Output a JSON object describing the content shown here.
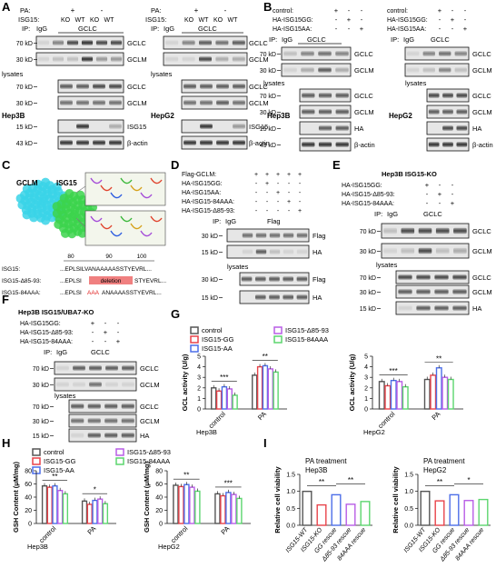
{
  "panels": {
    "A": "A",
    "B": "B",
    "C": "C",
    "D": "D",
    "E": "E",
    "F": "F",
    "G": "G",
    "H": "H",
    "I": "I"
  },
  "blot": {
    "pa": "PA:",
    "isg15": "ISG15:",
    "plus": "+",
    "minus": "-",
    "ko": "KO",
    "wt": "WT",
    "ip": "IP:",
    "igg": "IgG",
    "gclc": "GCLC",
    "gclm": "GCLM",
    "lysates": "lysates",
    "isg15_band": "ISG15",
    "bactin": "β-actin",
    "ha": "HA",
    "flag": "Flag",
    "control": "control:",
    "ha_gg": "HA-ISG15GG:",
    "ha_aa": "HA-ISG15AA:",
    "ha_d8593": "HA-ISG15-Δ85-93:",
    "ha_84aaa": "HA-ISG15-84AAA:",
    "flag_gclm": "Flag-GCLM:",
    "hep3b": "Hep3B",
    "hepg2": "HepG2",
    "hep3b_isg15ko": "Hep3B ISG15-KO",
    "hep3b_isg15uba7ko": "Hep3B ISG15/UBA7-KO",
    "kd70": "70 kD",
    "kd30": "30 kD",
    "kd15": "15 kD",
    "kd43": "43 kD"
  },
  "structure": {
    "gclm": "GCLM",
    "isg15": "ISG15",
    "seq_num80": "80",
    "seq_num90": "90",
    "seq_num100": "100",
    "seq1_label": "ISG15:",
    "seq1": "...EPLSILVANAAAAASSTYEVRL...",
    "seq2_label": "ISG15-Δ85-93:",
    "seq2_left": "...EPLSI",
    "seq2_del": "deletion",
    "seq2_right": "STYEVRL...",
    "seq3_label": "ISG15-84AAA:",
    "seq3_left": "...EPLSI",
    "seq3_aaa": "AAA",
    "seq3_right": "ANAAAASSTYEVRL..."
  },
  "legend": {
    "control": "control",
    "gg": "ISG15-GG",
    "aa": "ISG15-AA",
    "d8593": "ISG15-Δ85-93",
    "aaa": "ISG15-84AAA"
  },
  "colors": {
    "control": "#555555",
    "gg": "#e8434a",
    "aa": "#4c6ee8",
    "d8593": "#b85de6",
    "aaa": "#5cd66e"
  },
  "chart_data": [
    {
      "type": "bar",
      "panel": "G",
      "cell": "Hep3B",
      "ylabel": "GCL activity (U/g)",
      "ylim": [
        0,
        5
      ],
      "yticks": [
        0,
        1,
        2,
        3,
        4,
        5
      ],
      "categories": [
        "control",
        "PA"
      ],
      "series": [
        {
          "name": "control",
          "values": [
            2.0,
            3.2
          ]
        },
        {
          "name": "ISG15-GG",
          "values": [
            1.7,
            4.0
          ]
        },
        {
          "name": "ISG15-AA",
          "values": [
            2.1,
            4.1
          ]
        },
        {
          "name": "ISG15-Δ85-93",
          "values": [
            1.9,
            3.8
          ]
        },
        {
          "name": "ISG15-84AAA",
          "values": [
            1.3,
            3.5
          ]
        }
      ],
      "significance": [
        "***",
        "**"
      ]
    },
    {
      "type": "bar",
      "panel": "G",
      "cell": "HepG2",
      "ylabel": "GCL activity (U/g)",
      "ylim": [
        0,
        5
      ],
      "yticks": [
        0,
        1,
        2,
        3,
        4,
        5
      ],
      "categories": [
        "control",
        "PA"
      ],
      "series": [
        {
          "name": "control",
          "values": [
            2.6,
            2.8
          ]
        },
        {
          "name": "ISG15-GG",
          "values": [
            2.2,
            3.2
          ]
        },
        {
          "name": "ISG15-AA",
          "values": [
            2.7,
            3.9
          ]
        },
        {
          "name": "ISG15-Δ85-93",
          "values": [
            2.6,
            3.0
          ]
        },
        {
          "name": "ISG15-84AAA",
          "values": [
            2.1,
            2.8
          ]
        }
      ],
      "significance": [
        "***",
        "**"
      ]
    },
    {
      "type": "bar",
      "panel": "H",
      "cell": "Hep3B",
      "ylabel": "GSH Content (μM/mg)",
      "ylim": [
        0,
        80
      ],
      "yticks": [
        0,
        20,
        40,
        60,
        80
      ],
      "categories": [
        "control",
        "PA"
      ],
      "series": [
        {
          "name": "control",
          "values": [
            57,
            34
          ]
        },
        {
          "name": "ISG15-GG",
          "values": [
            55,
            29
          ]
        },
        {
          "name": "ISG15-AA",
          "values": [
            57,
            35
          ]
        },
        {
          "name": "ISG15-Δ85-93",
          "values": [
            50,
            37
          ]
        },
        {
          "name": "ISG15-84AAA",
          "values": [
            45,
            30
          ]
        }
      ],
      "significance": [
        "**",
        "*"
      ]
    },
    {
      "type": "bar",
      "panel": "H",
      "cell": "HepG2",
      "ylabel": "GSH Content (μM/mg)",
      "ylim": [
        0,
        80
      ],
      "yticks": [
        0,
        20,
        40,
        60,
        80
      ],
      "categories": [
        "control",
        "PA"
      ],
      "series": [
        {
          "name": "control",
          "values": [
            58,
            45
          ]
        },
        {
          "name": "ISG15-GG",
          "values": [
            56,
            42
          ]
        },
        {
          "name": "ISG15-AA",
          "values": [
            59,
            47
          ]
        },
        {
          "name": "ISG15-Δ85-93",
          "values": [
            55,
            44
          ]
        },
        {
          "name": "ISG15-84AAA",
          "values": [
            49,
            38
          ]
        }
      ],
      "significance": [
        "**",
        "***"
      ]
    },
    {
      "type": "bar",
      "panel": "I",
      "title": "PA treatment",
      "cell": "Hep3B",
      "ylabel": "Relative cell viability",
      "ylim": [
        0,
        1.5
      ],
      "yticks": [
        0.0,
        0.5,
        1.0,
        1.5
      ],
      "categories": [
        "ISG15-WT",
        "ISG15-KO",
        "GG rescue",
        "Δ85-93 rescue",
        "84AAA rescue"
      ],
      "values": [
        1.0,
        0.6,
        0.9,
        0.62,
        0.7
      ],
      "significance": [
        "**",
        "**"
      ]
    },
    {
      "type": "bar",
      "panel": "I",
      "title": "PA treatment",
      "cell": "HepG2",
      "ylabel": "Relative cell viability",
      "ylim": [
        0,
        1.5
      ],
      "yticks": [
        0.0,
        0.5,
        1.0,
        1.5
      ],
      "categories": [
        "ISG15-WT",
        "ISG15-KO",
        "GG rescue",
        "Δ85-93 rescue",
        "84AAA rescue"
      ],
      "values": [
        1.0,
        0.72,
        0.9,
        0.73,
        0.76
      ],
      "significance": [
        "**",
        "*"
      ]
    }
  ]
}
